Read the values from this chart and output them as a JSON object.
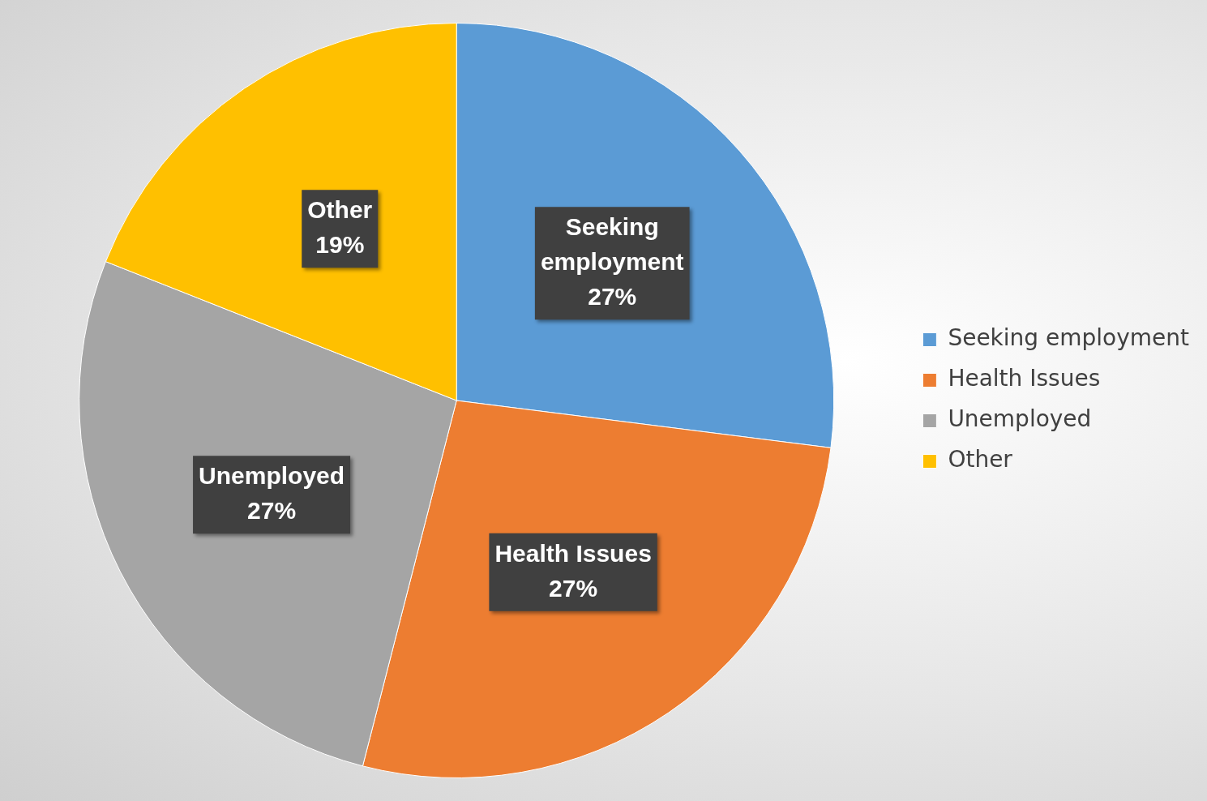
{
  "chart_data": {
    "type": "pie",
    "categories": [
      "Seeking employment",
      "Health Issues",
      "Unemployed",
      "Other"
    ],
    "values": [
      27,
      27,
      27,
      19
    ],
    "value_labels": [
      "27%",
      "27%",
      "27%",
      "19%"
    ],
    "colors": [
      "#5b9bd5",
      "#ed7d31",
      "#a5a5a5",
      "#ffc000"
    ],
    "legend": "right"
  }
}
